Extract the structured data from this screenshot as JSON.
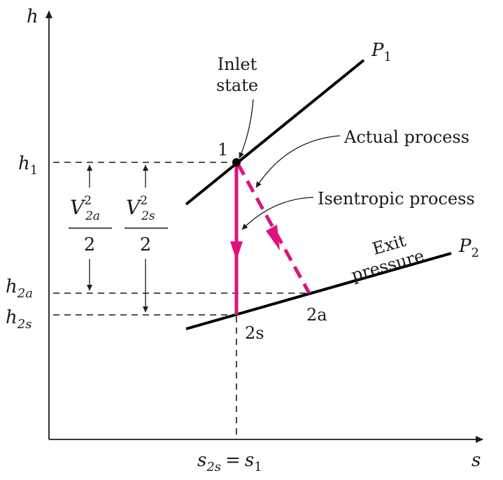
{
  "axes": {
    "y_label": "h",
    "x_label": "s"
  },
  "isobars": {
    "p1": {
      "label": "P",
      "subscript": "1"
    },
    "p2": {
      "label": "P",
      "subscript": "2"
    }
  },
  "labels": {
    "inlet_line1": "Inlet",
    "inlet_line2": "state",
    "actual_process": "Actual process",
    "isentropic_process": "Isentropic process",
    "exit_line1": "Exit",
    "exit_line2": "pressure",
    "state_1": "1",
    "state_2s": "2s",
    "state_2a": "2a"
  },
  "ticks": {
    "h1": {
      "main": "h",
      "sub": "1"
    },
    "h2a": {
      "main": "h",
      "sub": "2a"
    },
    "h2s": {
      "main": "h",
      "sub": "2s"
    },
    "s_eq": {
      "lhs_main": "s",
      "lhs_sub": "2s",
      "eq": "=",
      "rhs_main": "s",
      "rhs_sub": "1"
    }
  },
  "kinetic": {
    "v2a": {
      "symbol": "V",
      "sup": "2",
      "sub": "2a",
      "denominator": "2"
    },
    "v2s": {
      "symbol": "V",
      "sup": "2",
      "sub": "2s",
      "denominator": "2"
    }
  },
  "colors": {
    "process": "#e0117f",
    "lines": "#000000"
  }
}
